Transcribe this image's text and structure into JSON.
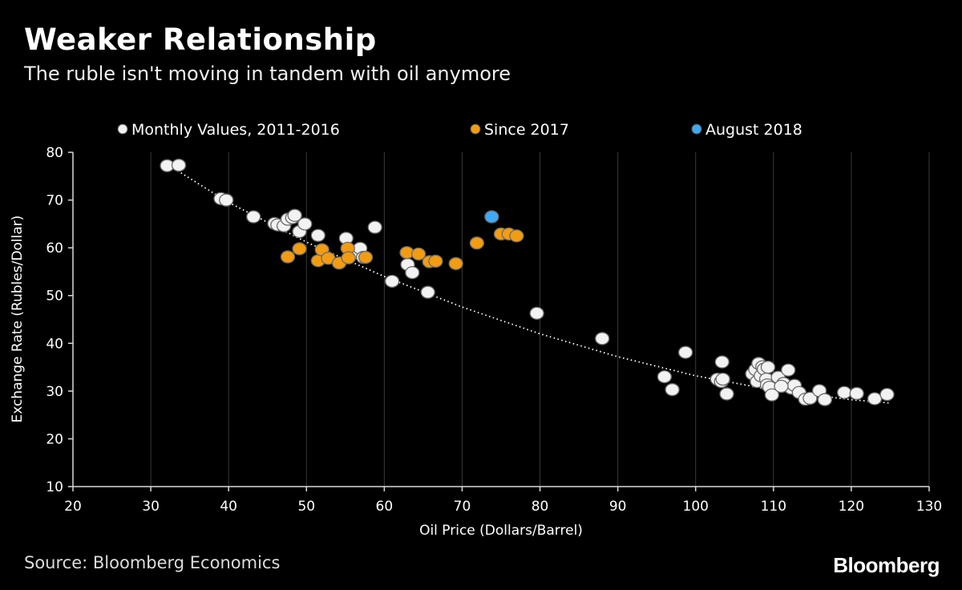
{
  "title": "Weaker Relationship",
  "subtitle": "The ruble isn't moving in tandem with oil anymore",
  "source": "Source: Bloomberg Economics",
  "brand": "Bloomberg",
  "chart_data": {
    "type": "scatter",
    "xlabel": "Oil Price (Dollars/Barrel)",
    "ylabel": "Exchange Rate (Rubles/Dollar)",
    "xlim": [
      20,
      130
    ],
    "ylim": [
      10,
      80
    ],
    "xticks": [
      20,
      30,
      40,
      50,
      60,
      70,
      80,
      90,
      100,
      110,
      120,
      130
    ],
    "yticks": [
      10,
      20,
      30,
      40,
      50,
      60,
      70,
      80
    ],
    "grid": "vertical",
    "legend_position": "top",
    "series": [
      {
        "name": "Monthly Values, 2011-2016",
        "color": "#f2f2f2",
        "points": [
          [
            32.1,
            77.2
          ],
          [
            33.6,
            77.3
          ],
          [
            39.0,
            70.3
          ],
          [
            39.7,
            70.0
          ],
          [
            43.2,
            66.5
          ],
          [
            45.9,
            65.1
          ],
          [
            46.3,
            64.8
          ],
          [
            47.1,
            64.6
          ],
          [
            47.6,
            66.0
          ],
          [
            48.2,
            66.3
          ],
          [
            48.5,
            66.8
          ],
          [
            49.1,
            63.4
          ],
          [
            49.8,
            65.0
          ],
          [
            51.5,
            62.6
          ],
          [
            55.1,
            62.0
          ],
          [
            55.8,
            58.6
          ],
          [
            56.9,
            59.9
          ],
          [
            57.3,
            58.0
          ],
          [
            58.8,
            64.3
          ],
          [
            61.0,
            53.0
          ],
          [
            63.0,
            56.5
          ],
          [
            63.6,
            54.8
          ],
          [
            65.6,
            50.7
          ],
          [
            79.6,
            46.3
          ],
          [
            88.0,
            41.0
          ],
          [
            96.0,
            33.0
          ],
          [
            97.0,
            30.3
          ],
          [
            98.7,
            38.1
          ],
          [
            102.8,
            32.5
          ],
          [
            103.3,
            32.0
          ],
          [
            103.4,
            36.1
          ],
          [
            103.5,
            32.5
          ],
          [
            104.0,
            29.4
          ],
          [
            107.3,
            33.6
          ],
          [
            107.7,
            34.5
          ],
          [
            107.9,
            32.0
          ],
          [
            108.1,
            35.8
          ],
          [
            108.4,
            33.2
          ],
          [
            108.6,
            35.1
          ],
          [
            108.8,
            34.6
          ],
          [
            109.1,
            32.5
          ],
          [
            109.2,
            31.3
          ],
          [
            109.5,
            30.8
          ],
          [
            109.8,
            29.2
          ],
          [
            110.6,
            32.9
          ],
          [
            111.3,
            31.6
          ],
          [
            111.9,
            34.4
          ],
          [
            112.3,
            30.6
          ],
          [
            112.7,
            31.2
          ],
          [
            113.3,
            29.7
          ],
          [
            114.1,
            28.3
          ],
          [
            114.7,
            28.5
          ],
          [
            115.9,
            30.1
          ],
          [
            116.6,
            28.2
          ],
          [
            119.1,
            29.7
          ],
          [
            120.7,
            29.5
          ],
          [
            123.0,
            28.4
          ],
          [
            124.6,
            29.3
          ],
          [
            109.3,
            35.0
          ],
          [
            111.0,
            31.0
          ]
        ]
      },
      {
        "name": "Since 2017",
        "color": "#f39c12",
        "points": [
          [
            47.6,
            58.1
          ],
          [
            49.1,
            59.8
          ],
          [
            51.5,
            57.3
          ],
          [
            52.0,
            59.6
          ],
          [
            52.8,
            57.8
          ],
          [
            54.2,
            56.8
          ],
          [
            55.3,
            59.9
          ],
          [
            55.4,
            57.9
          ],
          [
            57.6,
            58.0
          ],
          [
            62.9,
            59.0
          ],
          [
            64.4,
            58.7
          ],
          [
            65.8,
            57.1
          ],
          [
            66.6,
            57.2
          ],
          [
            69.2,
            56.7
          ],
          [
            71.9,
            61.0
          ],
          [
            75.0,
            62.9
          ],
          [
            76.0,
            62.9
          ],
          [
            77.0,
            62.5
          ]
        ]
      },
      {
        "name": "August 2018",
        "color": "#3fa9f5",
        "points": [
          [
            73.8,
            66.5
          ]
        ]
      }
    ],
    "trendline": {
      "style": "dotted",
      "points": [
        [
          33,
          76.6
        ],
        [
          40,
          69.5
        ],
        [
          50,
          61.2
        ],
        [
          60,
          54.0
        ],
        [
          70,
          47.6
        ],
        [
          80,
          42.0
        ],
        [
          90,
          37.2
        ],
        [
          100,
          33.2
        ],
        [
          110,
          30.2
        ],
        [
          120,
          28.2
        ],
        [
          125,
          27.5
        ]
      ]
    }
  }
}
